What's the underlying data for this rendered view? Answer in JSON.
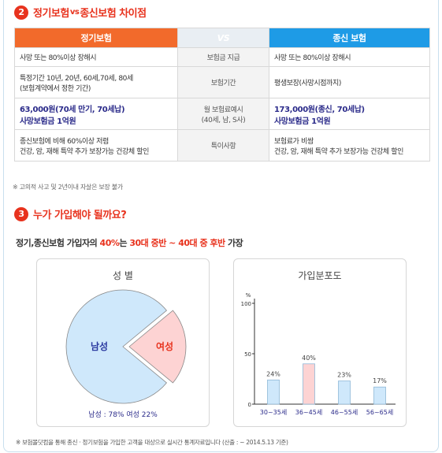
{
  "section2": {
    "number": "2",
    "title_left": "정기보험",
    "title_vs": "vs",
    "title_right": "종신보험 차이점"
  },
  "comparison": {
    "left_header": "정기보험",
    "vs_label": "VS",
    "right_header": "종신 보험",
    "rows": [
      {
        "left": "사망 또는 80%이상 장해시",
        "mid": "보험금 지급",
        "right": "사망 또는 80%이상 장해시",
        "strong": false
      },
      {
        "left": "특정기간 10년, 20년, 60세,70세, 80세\n(보험계약에서 정한 기간)",
        "mid": "보험기간",
        "right": "평생보장(사망시점까지)",
        "strong": false
      },
      {
        "left": "63,000원(70세 만기, 70세납)\n사망보험금 1억원",
        "mid": "월 보험료예시\n(40세, 남, S사)",
        "right": "173,000원(종신, 70세납)\n사망보험금 1억원",
        "strong": true
      },
      {
        "left": "종신보험에 비해 60%이상 저렴\n건강, 암, 재해 특약 추가 보장가능 건강체 할인",
        "mid": "특이사항",
        "right": "보험료가 비쌈\n건강, 암, 재해 특약 추가 보장가능 건강체 할인",
        "strong": false
      }
    ]
  },
  "note_top": "※ 고의적 사고 및 2년이내 자살은 보장 불가",
  "section3": {
    "number": "3",
    "title": "누가 가입해야 될까요?"
  },
  "subheading": {
    "prefix": "정기,종신보험 가입자의 ",
    "percent": "40%",
    "middle": "는 ",
    "range": "30대 중반 ~ 40대 중 후반",
    "suffix": " 가장"
  },
  "gender_chart": {
    "title": "성 별",
    "caption": "남성 : 78%  여성 22%"
  },
  "chart_data": [
    {
      "type": "pie",
      "title": "성 별",
      "labels": [
        "남성",
        "여성"
      ],
      "values": [
        78,
        22
      ],
      "colors": [
        "#cfe8fb",
        "#fdd3d3"
      ]
    },
    {
      "type": "bar",
      "title": "가입분포도",
      "ylabel": "%",
      "ylim": [
        0,
        100
      ],
      "yticks": [
        0,
        50,
        100
      ],
      "categories": [
        "30~35세",
        "36~45세",
        "46~55세",
        "56~65세"
      ],
      "values": [
        24,
        40,
        23,
        17
      ],
      "value_labels": [
        "24%",
        "40%",
        "23%",
        "17%"
      ],
      "colors": [
        "#cfe8fb",
        "#fdd3d3",
        "#cfe8fb",
        "#cfe8fb"
      ]
    }
  ],
  "footnote": "※ 보험몰닷컴을 통해 종신 · 정기보험을 가입한 고객을 대상으로 실시간 통계자료입니다 (산출 : ~ 2014.5.13 기준)"
}
